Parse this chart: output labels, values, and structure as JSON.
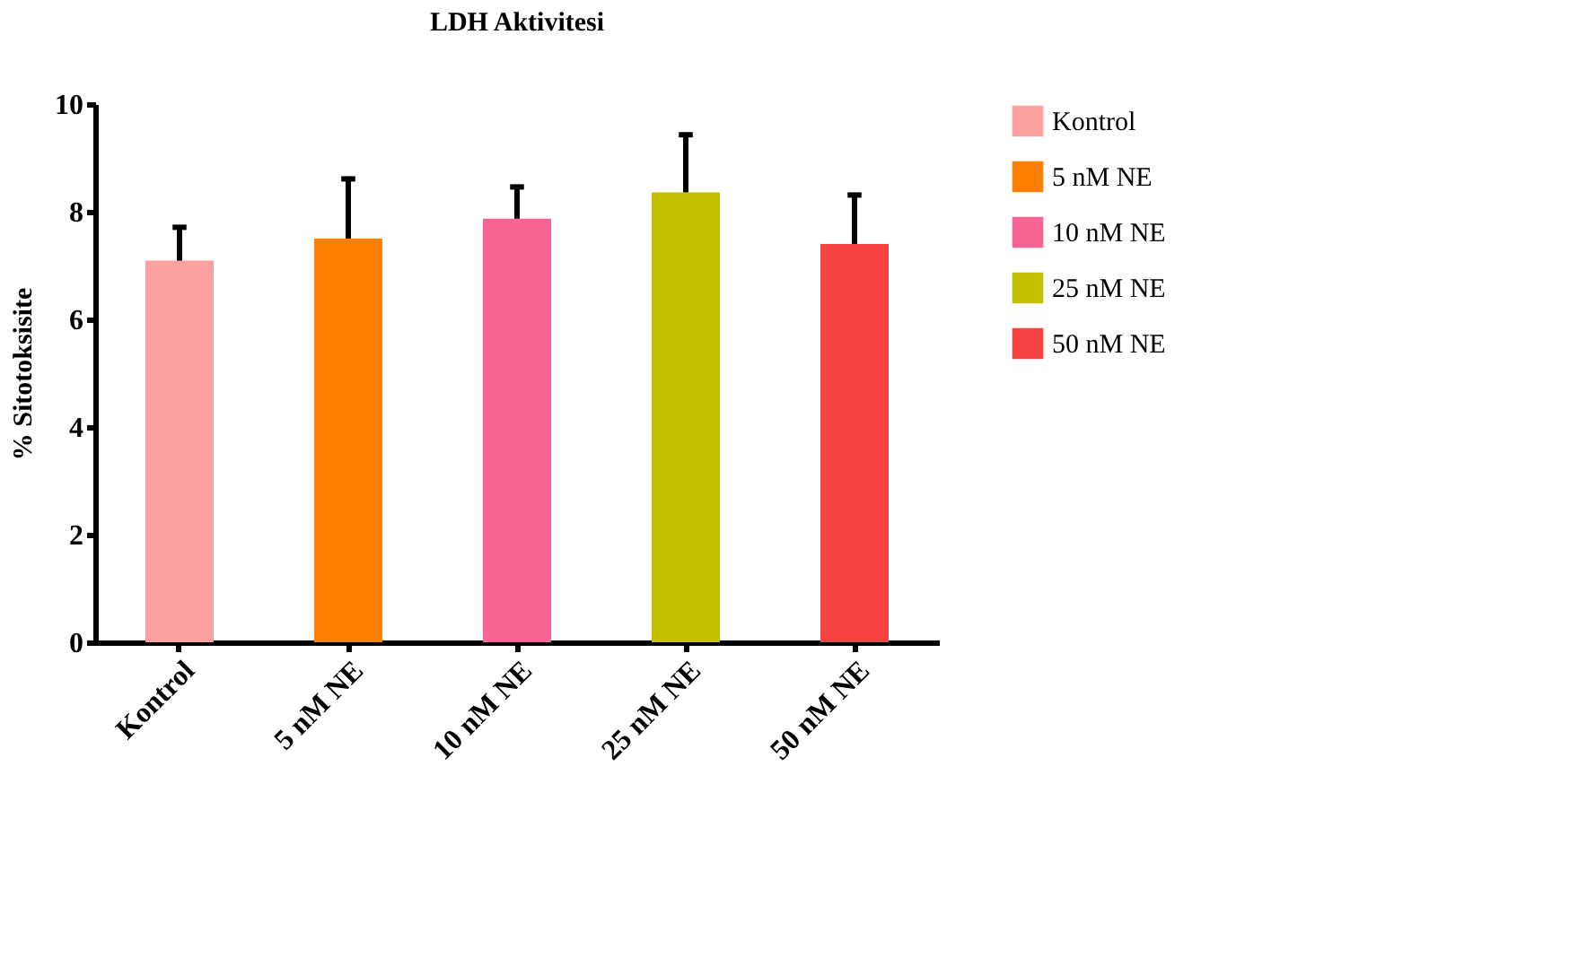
{
  "chart_data": {
    "type": "bar",
    "title": "LDH Aktivitesi",
    "ylabel": "% Sitotoksisite",
    "categories": [
      "Kontrol",
      "5 nM NE",
      "10 nM NE",
      "25 nM NE",
      "50 nM NE"
    ],
    "series": [
      {
        "name": "Kontrol",
        "color": "#fca0a0",
        "values": [
          7.09,
          null,
          null,
          null,
          null
        ],
        "errors": [
          [
            7.09,
            7.71
          ],
          null,
          null,
          null,
          null
        ]
      },
      {
        "name": "5 nM NE",
        "color": "#ff7f00",
        "values": [
          null,
          7.5,
          null,
          null,
          null
        ],
        "errors": [
          null,
          [
            7.5,
            8.61
          ],
          null,
          null,
          null
        ]
      },
      {
        "name": "10 nM NE",
        "color": "#f86592",
        "values": [
          null,
          null,
          7.87,
          null,
          null
        ],
        "errors": [
          null,
          null,
          [
            7.87,
            8.46
          ],
          null,
          null
        ]
      },
      {
        "name": "25 nM NE",
        "color": "#c3c000",
        "values": [
          null,
          null,
          null,
          8.36,
          null
        ],
        "errors": [
          null,
          null,
          null,
          [
            8.36,
            9.43
          ],
          null
        ]
      },
      {
        "name": "50 nM NE",
        "color": "#f74242",
        "values": [
          null,
          null,
          null,
          null,
          7.4
        ],
        "errors": [
          null,
          null,
          null,
          null,
          [
            7.4,
            8.31
          ]
        ]
      }
    ],
    "ylim": [
      0,
      10
    ],
    "yticks": [
      0,
      2,
      4,
      6,
      8,
      10
    ],
    "grid": false,
    "legend": "right"
  }
}
